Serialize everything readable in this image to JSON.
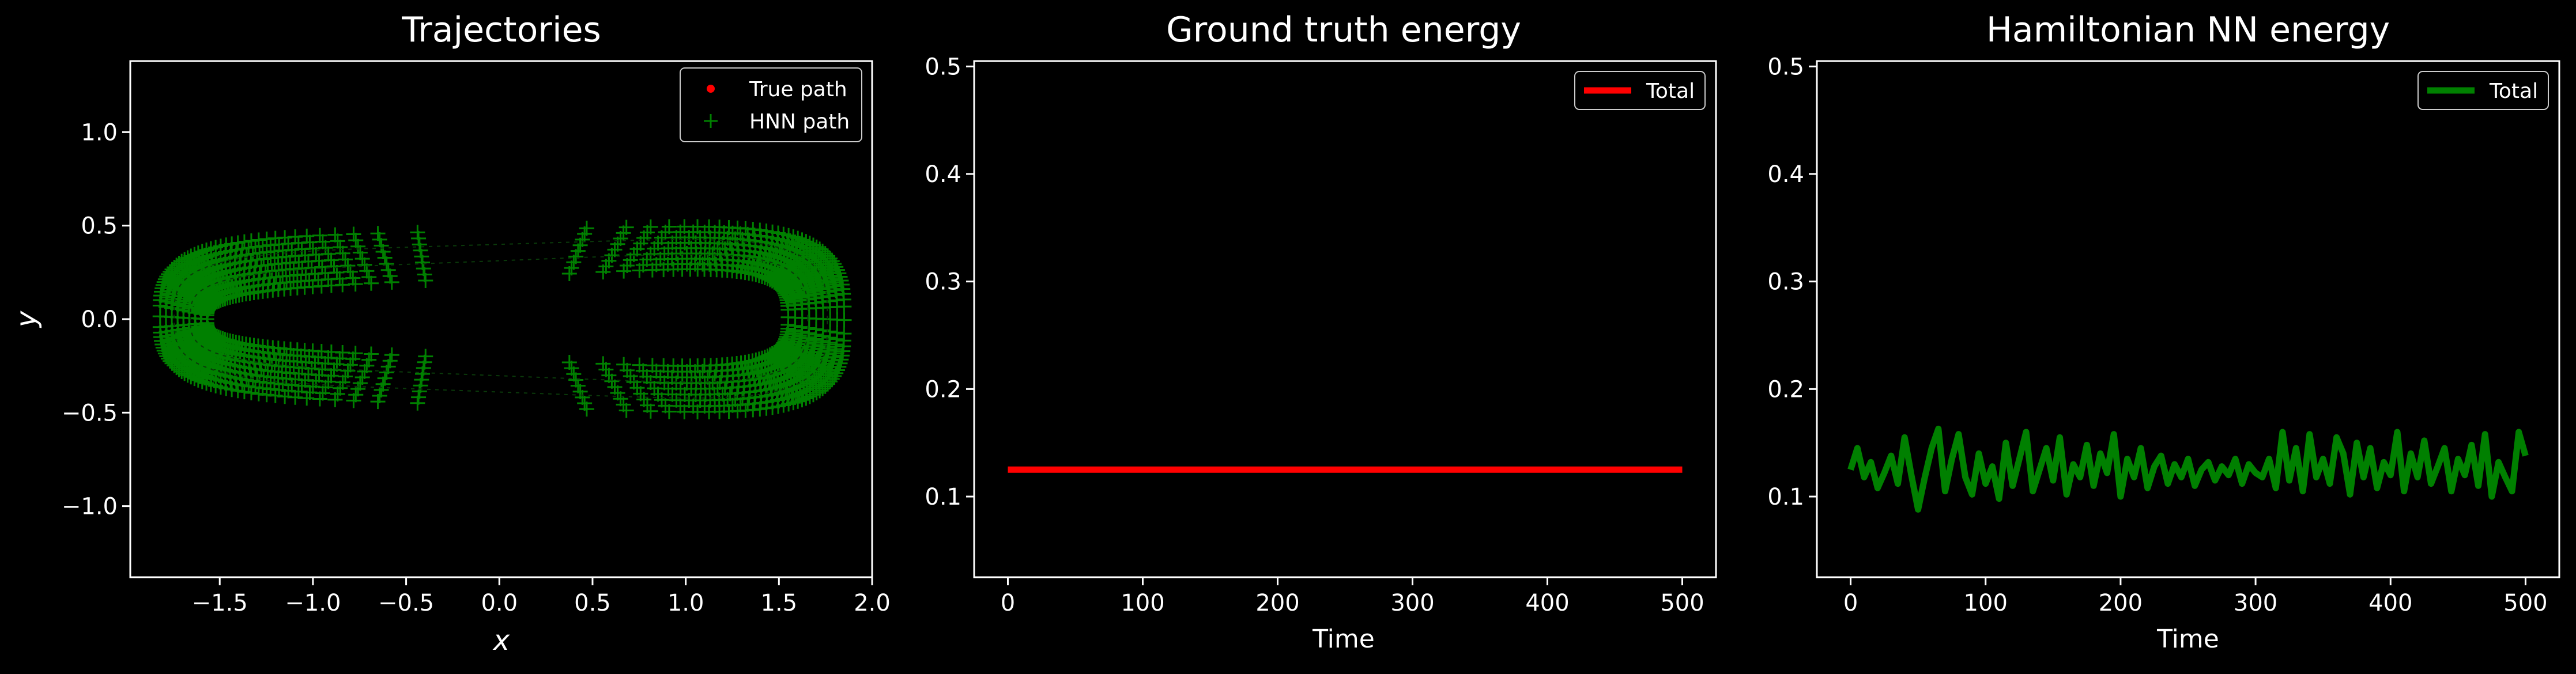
{
  "colors": {
    "background": "#000000",
    "axes": "#ffffff",
    "true_path": "#ff0000",
    "hnn_path": "#008000",
    "gt_energy": "#ff0000",
    "hnn_energy": "#008000"
  },
  "chart_data": [
    {
      "type": "scatter",
      "title": "Trajectories",
      "xlabel": "x",
      "ylabel": "y",
      "xlim": [
        -1.98,
        2.0
      ],
      "ylim": [
        -1.38,
        1.38
      ],
      "xticks": [
        "−1.5",
        "−1.0",
        "−0.5",
        "0.0",
        "0.5",
        "1.0",
        "1.5",
        "2.0"
      ],
      "xtick_values": [
        -1.5,
        -1.0,
        -0.5,
        0.0,
        0.5,
        1.0,
        1.5,
        2.0
      ],
      "yticks": [
        "−1.0",
        "−0.5",
        "0.0",
        "0.5",
        "1.0"
      ],
      "ytick_values": [
        -1.0,
        -0.5,
        0.0,
        0.5,
        1.0
      ],
      "legend_position": "top-right",
      "legend": [
        {
          "name": "True path",
          "marker": "dot",
          "color": "#ff0000"
        },
        {
          "name": "HNN path",
          "marker": "plus",
          "color": "#008000"
        }
      ],
      "orbit": {
        "outer": {
          "x_min": -1.82,
          "x_max": 1.85,
          "y_top_left": 0.43,
          "y_top_right": 0.52,
          "y_bottom_left": -0.4,
          "y_bottom_right": -0.53
        },
        "inner": {
          "x_min": -1.57,
          "x_max": 1.55,
          "y_top_left": 0.15,
          "y_top_right": 0.3,
          "y_bottom_left": -0.15,
          "y_bottom_right": -0.28
        }
      }
    },
    {
      "type": "line",
      "title": "Ground truth energy",
      "xlabel": "Time",
      "ylabel": "",
      "xlim": [
        -25,
        525
      ],
      "ylim": [
        0.025,
        0.505
      ],
      "xticks": [
        "0",
        "100",
        "200",
        "300",
        "400",
        "500"
      ],
      "xtick_values": [
        0,
        100,
        200,
        300,
        400,
        500
      ],
      "yticks": [
        "0.1",
        "0.2",
        "0.3",
        "0.4",
        "0.5"
      ],
      "ytick_values": [
        0.1,
        0.2,
        0.3,
        0.4,
        0.5
      ],
      "legend_position": "top-right",
      "series": [
        {
          "name": "Total",
          "color": "#ff0000",
          "x": [
            0,
            500
          ],
          "y": [
            0.125,
            0.125
          ]
        }
      ]
    },
    {
      "type": "line",
      "title": "Hamiltonian NN energy",
      "xlabel": "Time",
      "ylabel": "",
      "xlim": [
        -25,
        525
      ],
      "ylim": [
        0.025,
        0.505
      ],
      "xticks": [
        "0",
        "100",
        "200",
        "300",
        "400",
        "500"
      ],
      "xtick_values": [
        0,
        100,
        200,
        300,
        400,
        500
      ],
      "yticks": [
        "0.1",
        "0.2",
        "0.3",
        "0.4",
        "0.5"
      ],
      "ytick_values": [
        0.1,
        0.2,
        0.3,
        0.4,
        0.5
      ],
      "legend_position": "top-right",
      "series": [
        {
          "name": "Total",
          "color": "#008000",
          "x": [
            0,
            5,
            10,
            15,
            20,
            25,
            30,
            35,
            40,
            45,
            50,
            55,
            60,
            65,
            70,
            75,
            80,
            85,
            90,
            95,
            100,
            105,
            110,
            115,
            120,
            125,
            130,
            135,
            140,
            145,
            150,
            155,
            160,
            165,
            170,
            175,
            180,
            185,
            190,
            195,
            200,
            205,
            210,
            215,
            220,
            225,
            230,
            235,
            240,
            245,
            250,
            255,
            260,
            265,
            270,
            275,
            280,
            285,
            290,
            295,
            300,
            305,
            310,
            315,
            320,
            325,
            330,
            335,
            340,
            345,
            350,
            355,
            360,
            365,
            370,
            375,
            380,
            385,
            390,
            395,
            400,
            405,
            410,
            415,
            420,
            425,
            430,
            435,
            440,
            445,
            450,
            455,
            460,
            465,
            470,
            475,
            480,
            485,
            490,
            495,
            500
          ],
          "y": [
            0.125,
            0.145,
            0.118,
            0.132,
            0.108,
            0.122,
            0.138,
            0.112,
            0.155,
            0.12,
            0.088,
            0.118,
            0.145,
            0.163,
            0.105,
            0.135,
            0.158,
            0.118,
            0.102,
            0.14,
            0.112,
            0.128,
            0.098,
            0.15,
            0.11,
            0.135,
            0.16,
            0.105,
            0.125,
            0.145,
            0.115,
            0.155,
            0.102,
            0.13,
            0.118,
            0.148,
            0.11,
            0.14,
            0.122,
            0.158,
            0.1,
            0.135,
            0.118,
            0.145,
            0.108,
            0.128,
            0.138,
            0.112,
            0.13,
            0.118,
            0.135,
            0.11,
            0.125,
            0.132,
            0.115,
            0.128,
            0.12,
            0.135,
            0.112,
            0.13,
            0.122,
            0.118,
            0.135,
            0.108,
            0.16,
            0.115,
            0.145,
            0.105,
            0.158,
            0.118,
            0.135,
            0.112,
            0.155,
            0.14,
            0.102,
            0.15,
            0.118,
            0.145,
            0.108,
            0.132,
            0.12,
            0.16,
            0.105,
            0.14,
            0.118,
            0.152,
            0.112,
            0.128,
            0.145,
            0.105,
            0.135,
            0.12,
            0.148,
            0.11,
            0.158,
            0.1,
            0.132,
            0.118,
            0.105,
            0.16,
            0.138
          ]
        }
      ]
    }
  ]
}
